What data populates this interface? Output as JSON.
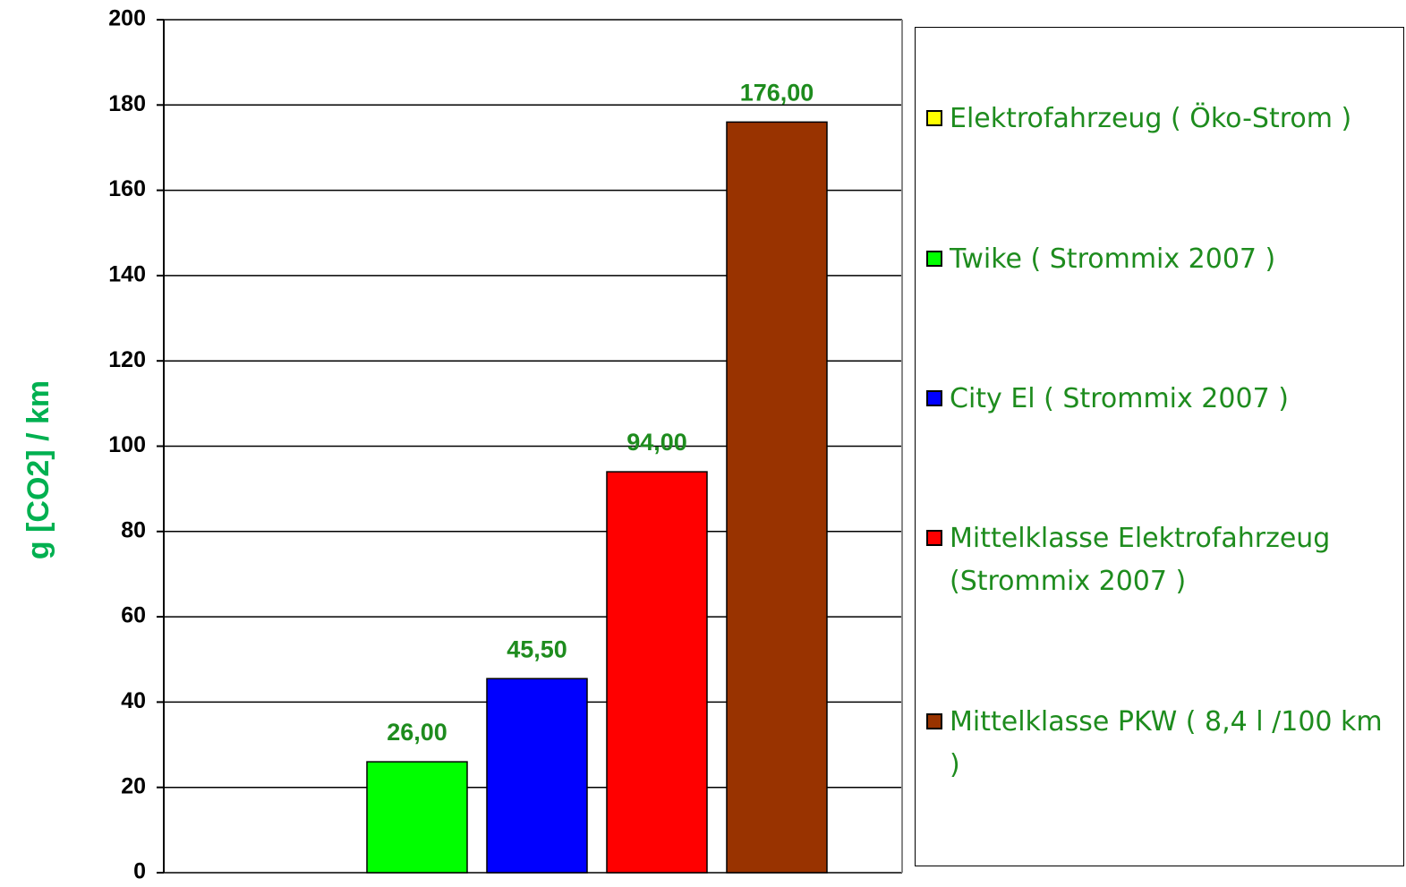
{
  "chart_data": {
    "type": "bar",
    "y_label": "g [CO2] / km",
    "ylim": [
      0,
      200
    ],
    "yticks": [
      0,
      20,
      40,
      60,
      80,
      100,
      120,
      140,
      160,
      180,
      200
    ],
    "grid": true,
    "series": [
      {
        "name": "Elektrofahrzeug ( Öko-Strom )",
        "color": "#ffff00",
        "values": [
          0
        ]
      },
      {
        "name": "Twike ( Strommix 2007 )",
        "color": "#00ff00",
        "values": [
          26
        ],
        "value_labels": [
          "26,00"
        ]
      },
      {
        "name": "City El ( Strommix 2007 )",
        "color": "#0000ff",
        "values": [
          45.5
        ],
        "value_labels": [
          "45,50"
        ]
      },
      {
        "name": "Mittelklasse Elektrofahrzeug (Strommix 2007 )",
        "color": "#ff0000",
        "values": [
          94
        ],
        "value_labels": [
          "94,00"
        ]
      },
      {
        "name": "Mittelklasse PKW ( 8,4 l /100 km )",
        "color": "#993300",
        "values": [
          176
        ],
        "value_labels": [
          "176,00"
        ]
      }
    ]
  }
}
